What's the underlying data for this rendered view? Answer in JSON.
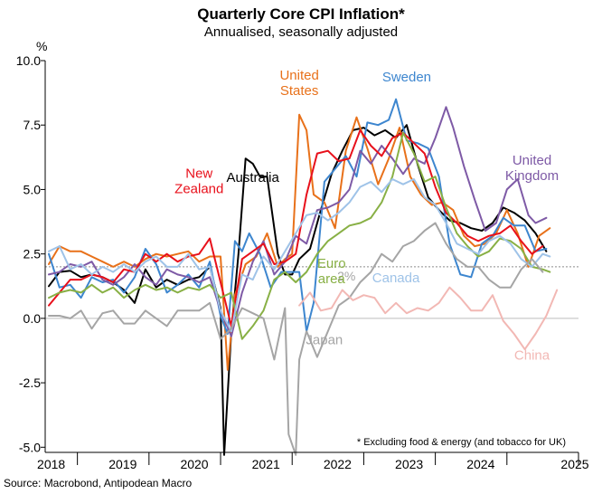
{
  "chart_data": {
    "type": "line",
    "title": "Quarterly Core CPI Inflation*",
    "subtitle": "Annualised, seasonally adjusted",
    "ylabel": "%",
    "ylim": [
      -5.2,
      10.0
    ],
    "xlim": [
      2017.55,
      2025.0
    ],
    "y_ticks": [
      10.0,
      7.5,
      5.0,
      2.5,
      0.0,
      -2.5,
      -5.0
    ],
    "y_tick_labels": [
      "10.0",
      "7.5",
      "5.0",
      "2.5",
      "0.0",
      "-2.5",
      "-5.0"
    ],
    "x_tick_labels": [
      {
        "label": "2018",
        "x": 2018.0
      },
      {
        "label": "2019",
        "x": 2019.0
      },
      {
        "label": "2020",
        "x": 2020.0
      },
      {
        "label": "2021",
        "x": 2021.0
      },
      {
        "label": "2022",
        "x": 2022.0
      },
      {
        "label": "2023",
        "x": 2023.0
      },
      {
        "label": "2024",
        "x": 2024.0
      },
      {
        "label": "2025",
        "x": 2025.0
      }
    ],
    "reference_line": {
      "value": 2.0,
      "label": "2%"
    },
    "footnote": "* Excluding food & energy (and tobacco for UK)",
    "source": "Source: Macrobond, Antipodean Macro",
    "series": [
      {
        "name": "Australia",
        "label_lines": [
          "Australia"
        ],
        "label_at": [
          2020.45,
          5.3
        ],
        "color": "#000000",
        "x": [
          2017.6,
          2017.75,
          2017.9,
          2018.05,
          2018.2,
          2018.35,
          2018.5,
          2018.65,
          2018.8,
          2018.95,
          2019.1,
          2019.25,
          2019.4,
          2019.55,
          2019.7,
          2019.85,
          2020.0,
          2020.05,
          2020.15,
          2020.25,
          2020.35,
          2020.45,
          2020.55,
          2020.65,
          2020.8,
          2020.9,
          2021.0,
          2021.1,
          2021.25,
          2021.4,
          2021.55,
          2021.7,
          2021.85,
          2022.0,
          2022.15,
          2022.3,
          2022.45,
          2022.6,
          2022.75,
          2022.9,
          2023.05,
          2023.2,
          2023.35,
          2023.5,
          2023.65,
          2023.8,
          2023.95,
          2024.1,
          2024.25,
          2024.4,
          2024.55
        ],
        "values": [
          1.25,
          1.8,
          1.85,
          1.6,
          1.7,
          1.6,
          1.4,
          1.1,
          0.6,
          1.9,
          1.2,
          1.5,
          1.3,
          1.5,
          1.6,
          2.0,
          0.4,
          -5.3,
          -0.5,
          2.5,
          6.2,
          6.0,
          5.5,
          5.5,
          2.5,
          1.7,
          1.7,
          2.3,
          2.7,
          4.2,
          5.6,
          6.5,
          7.3,
          7.4,
          7.1,
          7.3,
          7.0,
          7.5,
          6.0,
          4.7,
          4.2,
          3.8,
          3.7,
          3.5,
          3.4,
          3.7,
          4.3,
          4.1,
          3.8,
          3.3,
          2.6
        ]
      },
      {
        "name": "United States",
        "label_lines": [
          "United",
          "States"
        ],
        "label_at": [
          2021.1,
          8.7
        ],
        "color": "#E8711A",
        "x": [
          2017.6,
          2017.75,
          2017.9,
          2018.05,
          2018.2,
          2018.35,
          2018.5,
          2018.65,
          2018.8,
          2018.95,
          2019.1,
          2019.25,
          2019.4,
          2019.55,
          2019.7,
          2019.85,
          2020.0,
          2020.1,
          2020.2,
          2020.35,
          2020.5,
          2020.65,
          2020.8,
          2020.9,
          2021.0,
          2021.1,
          2021.2,
          2021.3,
          2021.45,
          2021.6,
          2021.75,
          2021.9,
          2022.05,
          2022.2,
          2022.35,
          2022.5,
          2022.65,
          2022.8,
          2022.95,
          2023.1,
          2023.25,
          2023.4,
          2023.55,
          2023.7,
          2023.85,
          2024.0,
          2024.15,
          2024.3,
          2024.45,
          2024.6
        ],
        "values": [
          2.1,
          2.8,
          2.6,
          2.6,
          2.4,
          2.2,
          2.0,
          2.2,
          2.0,
          2.3,
          2.5,
          2.4,
          2.5,
          2.6,
          2.2,
          2.4,
          2.4,
          -2.0,
          0.9,
          2.1,
          2.4,
          3.3,
          2.0,
          2.3,
          2.5,
          7.9,
          7.3,
          4.8,
          4.5,
          3.5,
          6.5,
          7.8,
          6.6,
          5.2,
          6.2,
          7.4,
          5.5,
          4.8,
          4.4,
          4.5,
          4.2,
          3.2,
          2.8,
          2.9,
          3.3,
          4.2,
          3.3,
          2.0,
          3.2,
          3.5
        ]
      },
      {
        "name": "Sweden",
        "label_lines": [
          "Sweden"
        ],
        "label_at": [
          2022.6,
          9.2
        ],
        "color": "#3D86CF",
        "x": [
          2017.6,
          2017.75,
          2017.9,
          2018.05,
          2018.2,
          2018.35,
          2018.5,
          2018.65,
          2018.8,
          2018.95,
          2019.1,
          2019.25,
          2019.4,
          2019.55,
          2019.7,
          2019.85,
          2020.0,
          2020.1,
          2020.2,
          2020.3,
          2020.4,
          2020.55,
          2020.7,
          2020.85,
          2021.0,
          2021.1,
          2021.2,
          2021.3,
          2021.45,
          2021.6,
          2021.75,
          2021.9,
          2022.05,
          2022.2,
          2022.35,
          2022.45,
          2022.6,
          2022.75,
          2022.9,
          2023.05,
          2023.2,
          2023.35,
          2023.5,
          2023.65,
          2023.8,
          2023.95,
          2024.1,
          2024.25,
          2024.4,
          2024.55
        ],
        "values": [
          2.5,
          1.2,
          1.3,
          0.8,
          1.6,
          1.4,
          1.5,
          1.0,
          1.6,
          2.7,
          2.1,
          1.0,
          1.3,
          1.7,
          1.2,
          2.2,
          0.1,
          -0.6,
          3.0,
          2.6,
          3.3,
          2.5,
          1.2,
          1.8,
          1.8,
          1.8,
          -0.5,
          0.6,
          5.3,
          5.8,
          6.3,
          5.5,
          7.6,
          7.5,
          7.7,
          8.5,
          6.9,
          6.8,
          6.6,
          5.5,
          2.9,
          1.7,
          1.6,
          2.9,
          3.2,
          3.9,
          3.6,
          3.6,
          2.6,
          2.7
        ]
      },
      {
        "name": "United Kingdom",
        "label_lines": [
          "United",
          "Kingdom"
        ],
        "label_at": [
          2024.35,
          5.4
        ],
        "color": "#7E5AA6",
        "x": [
          2017.6,
          2017.75,
          2017.9,
          2018.05,
          2018.2,
          2018.35,
          2018.5,
          2018.65,
          2018.8,
          2018.95,
          2019.1,
          2019.25,
          2019.4,
          2019.55,
          2019.7,
          2019.85,
          2020.0,
          2020.15,
          2020.3,
          2020.45,
          2020.6,
          2020.75,
          2020.9,
          2021.05,
          2021.2,
          2021.35,
          2021.5,
          2021.65,
          2021.8,
          2021.95,
          2022.1,
          2022.25,
          2022.4,
          2022.55,
          2022.7,
          2022.85,
          2023.0,
          2023.15,
          2023.25,
          2023.4,
          2023.55,
          2023.7,
          2023.85,
          2024.0,
          2024.15,
          2024.3,
          2024.4,
          2024.55
        ],
        "values": [
          1.7,
          1.8,
          2.1,
          2.0,
          2.2,
          1.5,
          1.3,
          1.6,
          2.1,
          1.6,
          1.3,
          1.9,
          1.7,
          1.6,
          1.4,
          1.6,
          0.3,
          -0.7,
          1.0,
          2.2,
          3.0,
          1.7,
          2.2,
          3.2,
          2.9,
          4.2,
          4.3,
          4.5,
          5.0,
          6.5,
          6.0,
          6.7,
          6.2,
          5.6,
          6.2,
          6.0,
          7.0,
          8.2,
          7.4,
          5.9,
          4.6,
          3.4,
          3.7,
          5.0,
          5.4,
          4.0,
          3.7,
          3.9
        ]
      },
      {
        "name": "New Zealand",
        "label_lines": [
          "New",
          "Zealand"
        ],
        "label_at": [
          2019.7,
          4.9
        ],
        "color": "#E8101B",
        "x": [
          2017.6,
          2017.75,
          2017.9,
          2018.05,
          2018.2,
          2018.35,
          2018.5,
          2018.65,
          2018.8,
          2018.95,
          2019.1,
          2019.25,
          2019.4,
          2019.55,
          2019.7,
          2019.85,
          2020.0,
          2020.15,
          2020.3,
          2020.45,
          2020.6,
          2020.75,
          2020.9,
          2021.05,
          2021.2,
          2021.35,
          2021.5,
          2021.65,
          2021.8,
          2021.95,
          2022.1,
          2022.25,
          2022.4,
          2022.55,
          2022.7,
          2022.85,
          2023.0,
          2023.15,
          2023.3,
          2023.45,
          2023.6,
          2023.75,
          2023.9,
          2024.05,
          2024.2,
          2024.35,
          2024.5
        ],
        "values": [
          0.5,
          1.0,
          1.5,
          1.5,
          1.7,
          1.6,
          1.4,
          1.9,
          1.8,
          2.5,
          2.2,
          2.5,
          2.2,
          2.4,
          2.5,
          3.1,
          1.4,
          -0.3,
          2.3,
          2.6,
          2.9,
          2.1,
          2.2,
          2.5,
          4.8,
          6.4,
          6.5,
          6.1,
          6.2,
          7.3,
          6.7,
          6.3,
          7.0,
          7.2,
          6.8,
          6.4,
          5.1,
          4.1,
          3.7,
          3.2,
          3.0,
          3.2,
          3.3,
          3.6,
          3.0,
          2.5,
          2.8
        ]
      },
      {
        "name": "Euro area",
        "label_lines": [
          "Euro",
          "area"
        ],
        "label_at": [
          2021.55,
          1.4
        ],
        "color": "#88B045",
        "x": [
          2017.6,
          2017.75,
          2017.9,
          2018.05,
          2018.2,
          2018.35,
          2018.5,
          2018.65,
          2018.8,
          2018.95,
          2019.1,
          2019.25,
          2019.4,
          2019.55,
          2019.7,
          2019.85,
          2020.0,
          2020.15,
          2020.3,
          2020.45,
          2020.6,
          2020.75,
          2020.9,
          2021.05,
          2021.2,
          2021.35,
          2021.5,
          2021.65,
          2021.8,
          2021.95,
          2022.1,
          2022.25,
          2022.4,
          2022.55,
          2022.7,
          2022.85,
          2023.0,
          2023.15,
          2023.3,
          2023.45,
          2023.6,
          2023.75,
          2023.9,
          2024.05,
          2024.2,
          2024.35,
          2024.5,
          2024.6
        ],
        "values": [
          0.8,
          1.0,
          1.1,
          1.0,
          1.3,
          1.0,
          1.2,
          0.8,
          1.1,
          1.3,
          1.1,
          1.2,
          1.0,
          1.2,
          1.1,
          1.3,
          0.8,
          1.0,
          -0.8,
          -0.3,
          0.3,
          1.5,
          1.8,
          1.4,
          1.8,
          2.5,
          3.0,
          3.3,
          3.6,
          3.7,
          3.9,
          4.5,
          5.5,
          7.2,
          6.4,
          5.3,
          5.5,
          4.3,
          3.3,
          2.8,
          2.4,
          2.6,
          3.1,
          3.0,
          2.7,
          2.0,
          1.9,
          1.8
        ]
      },
      {
        "name": "Canada",
        "label_lines": [
          "Canada"
        ],
        "label_at": [
          2022.45,
          1.4
        ],
        "color": "#9FC3E8",
        "x": [
          2017.6,
          2017.75,
          2017.9,
          2018.05,
          2018.2,
          2018.35,
          2018.5,
          2018.65,
          2018.8,
          2018.95,
          2019.1,
          2019.25,
          2019.4,
          2019.55,
          2019.7,
          2019.85,
          2020.0,
          2020.15,
          2020.3,
          2020.45,
          2020.6,
          2020.75,
          2020.9,
          2021.05,
          2021.2,
          2021.35,
          2021.5,
          2021.65,
          2021.8,
          2021.95,
          2022.1,
          2022.25,
          2022.4,
          2022.55,
          2022.7,
          2022.85,
          2023.0,
          2023.15,
          2023.3,
          2023.45,
          2023.6,
          2023.75,
          2023.9,
          2024.05,
          2024.2,
          2024.35,
          2024.5,
          2024.6
        ],
        "values": [
          2.6,
          2.8,
          1.9,
          2.1,
          1.7,
          2.0,
          1.8,
          2.1,
          1.8,
          2.2,
          2.4,
          2.0,
          2.0,
          2.5,
          1.9,
          2.0,
          0.3,
          -0.5,
          1.7,
          1.5,
          2.4,
          1.9,
          2.6,
          3.3,
          4.0,
          4.1,
          3.8,
          4.1,
          4.5,
          5.1,
          5.3,
          4.9,
          5.4,
          5.2,
          5.4,
          4.7,
          4.4,
          3.7,
          2.9,
          2.7,
          2.5,
          3.0,
          3.2,
          2.9,
          2.3,
          2.0,
          2.5,
          2.4
        ]
      },
      {
        "name": "Japan",
        "label_lines": [
          "Japan"
        ],
        "label_at": [
          2021.45,
          -1.0
        ],
        "color": "#A5A5A5",
        "x": [
          2017.6,
          2017.75,
          2017.9,
          2018.05,
          2018.2,
          2018.35,
          2018.5,
          2018.65,
          2018.8,
          2018.95,
          2019.1,
          2019.25,
          2019.4,
          2019.55,
          2019.7,
          2019.85,
          2020.0,
          2020.15,
          2020.3,
          2020.45,
          2020.6,
          2020.75,
          2020.9,
          2020.95,
          2021.05,
          2021.1,
          2021.2,
          2021.35,
          2021.5,
          2021.65,
          2021.8,
          2021.95,
          2022.1,
          2022.25,
          2022.4,
          2022.55,
          2022.7,
          2022.85,
          2023.0,
          2023.15,
          2023.3,
          2023.45,
          2023.6,
          2023.75,
          2023.9,
          2024.05,
          2024.2,
          2024.35,
          2024.5
        ],
        "values": [
          0.1,
          0.1,
          0.0,
          0.3,
          -0.4,
          0.2,
          0.3,
          -0.2,
          -0.2,
          0.3,
          0.0,
          -0.3,
          0.3,
          0.3,
          0.3,
          0.6,
          -0.8,
          -0.4,
          0.4,
          0.2,
          0.0,
          -1.6,
          0.4,
          -4.5,
          -5.3,
          -1.6,
          -0.5,
          -1.5,
          -0.5,
          0.5,
          0.8,
          1.4,
          1.8,
          2.5,
          2.2,
          2.8,
          3.0,
          3.4,
          3.7,
          2.9,
          2.3,
          2.0,
          2.0,
          1.5,
          1.2,
          1.2,
          1.9,
          2.3,
          1.8
        ]
      },
      {
        "name": "China",
        "label_lines": [
          "China"
        ],
        "label_at": [
          2024.35,
          -1.6
        ],
        "color": "#F2B8B4",
        "x": [
          2021.1,
          2021.25,
          2021.4,
          2021.55,
          2021.7,
          2021.85,
          2022.0,
          2022.15,
          2022.3,
          2022.45,
          2022.6,
          2022.75,
          2022.9,
          2023.05,
          2023.2,
          2023.35,
          2023.5,
          2023.65,
          2023.8,
          2023.95,
          2024.1,
          2024.25,
          2024.4,
          2024.55,
          2024.7
        ],
        "values": [
          0.5,
          1.0,
          0.3,
          0.4,
          1.1,
          0.7,
          0.9,
          0.8,
          0.2,
          0.6,
          0.2,
          0.4,
          0.3,
          0.6,
          1.2,
          0.8,
          0.3,
          0.3,
          0.9,
          -0.1,
          -0.6,
          -1.2,
          -0.6,
          0.1,
          1.1
        ]
      }
    ]
  }
}
